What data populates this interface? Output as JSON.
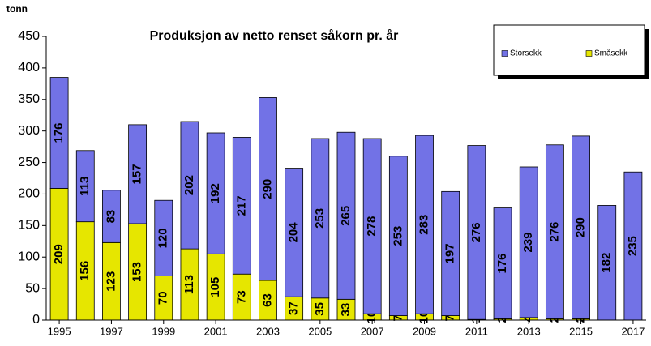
{
  "chart_data": {
    "type": "bar",
    "stacked": true,
    "title": "Produksjon av netto renset såkorn pr. år",
    "y_label": "tonn",
    "categories": [
      "1995",
      null,
      "1997",
      null,
      "1999",
      null,
      "2001",
      null,
      "2003",
      null,
      "2005",
      null,
      "2007",
      null,
      "2009",
      null,
      "2011",
      null,
      "2013",
      null,
      "2015",
      null,
      "2017"
    ],
    "series": [
      {
        "name": "Storsekk",
        "color": "#7272e6",
        "values": [
          176,
          113,
          83,
          157,
          120,
          202,
          192,
          217,
          290,
          204,
          253,
          265,
          278,
          253,
          283,
          197,
          276,
          176,
          239,
          276,
          290,
          182,
          235
        ]
      },
      {
        "name": "Småsekk",
        "color": "#e6e600",
        "values": [
          209,
          156,
          123,
          153,
          70,
          113,
          105,
          73,
          63,
          37,
          35,
          33,
          10,
          7,
          10,
          7,
          1,
          2,
          4,
          2,
          2,
          null,
          null
        ]
      }
    ],
    "ylim": [
      0,
      450
    ],
    "yticks": [
      0,
      50,
      100,
      150,
      200,
      250,
      300,
      350,
      400,
      450
    ],
    "legend": "top-right",
    "grid": false
  }
}
